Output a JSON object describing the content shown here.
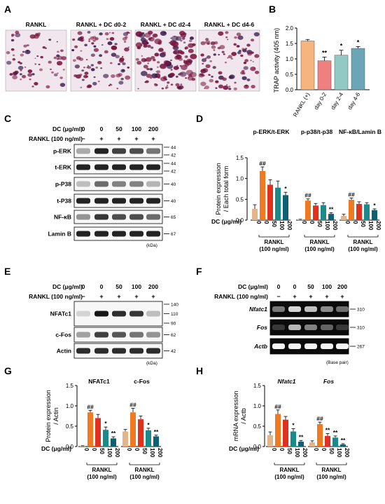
{
  "panels": {
    "A": {
      "letter": "A",
      "images": [
        {
          "label": "RANKL",
          "tone": "light"
        },
        {
          "label": "RANKL + DC d0-2",
          "tone": "medium"
        },
        {
          "label": "RANKL + DC d2-4",
          "tone": "dark"
        },
        {
          "label": "RANKL + DC d4-6",
          "tone": "medium"
        }
      ],
      "colors": {
        "bg": "#f1e6ee",
        "stain": "#7a1840",
        "nucleus": "#3b1d4a"
      }
    },
    "B": {
      "letter": "B",
      "chart_data": {
        "type": "bar",
        "categories": [
          "RANKL (+)",
          "day 0-2",
          "day 2-4",
          "day 4-6"
        ],
        "values": [
          1.58,
          0.94,
          1.12,
          1.34
        ],
        "errors": [
          0.05,
          0.12,
          0.16,
          0.06
        ],
        "sig": [
          "",
          "**",
          "*",
          "*"
        ],
        "colors": [
          "#f6b47e",
          "#f07f80",
          "#93c9c4",
          "#6aa6b5"
        ],
        "ylabel": "TRAP activity (405 nm)",
        "ylim": [
          0,
          2.0
        ],
        "yticks": [
          "0.0",
          "0.5",
          "1.0",
          "1.5",
          "2.0"
        ]
      }
    },
    "C": {
      "letter": "C",
      "dc_label": "DC (μg/ml)",
      "rankl_label": "RANKL (100 ng/ml)",
      "dc_values": [
        "0",
        "0",
        "50",
        "100",
        "200"
      ],
      "rankl_values": [
        "−",
        "+",
        "+",
        "+",
        "+"
      ],
      "rows": [
        {
          "name": "p-ERK",
          "markers": [
            "44",
            "42"
          ],
          "intensity": [
            0.25,
            0.9,
            0.75,
            0.7,
            0.5
          ]
        },
        {
          "name": "t-ERK",
          "markers": [
            "44",
            "42"
          ],
          "intensity": [
            0.9,
            0.9,
            0.9,
            0.9,
            0.9
          ]
        },
        {
          "name": "p-P38",
          "markers": [
            "40"
          ],
          "intensity": [
            0.15,
            0.55,
            0.45,
            0.45,
            0.2
          ]
        },
        {
          "name": "t-P38",
          "markers": [
            "40"
          ],
          "intensity": [
            0.9,
            0.9,
            0.9,
            0.9,
            0.9
          ]
        },
        {
          "name": "NF-κB",
          "markers": [
            "65"
          ],
          "intensity": [
            0.35,
            0.8,
            0.7,
            0.7,
            0.55
          ]
        },
        {
          "name": "Lamin B",
          "markers": [
            "67"
          ],
          "intensity": [
            0.9,
            0.9,
            0.9,
            0.9,
            0.9
          ]
        }
      ],
      "unit": "(kDa)"
    },
    "D": {
      "letter": "D",
      "chart_data": {
        "type": "bar",
        "ylabel_line1": "Protein expression",
        "ylabel_line2": "/ Each total form",
        "ylim": [
          0,
          1.5
        ],
        "yticks": [
          "0.0",
          "0.5",
          "1.0",
          "1.5"
        ],
        "groups": [
          {
            "title": "p-ERK/t-ERK",
            "values": [
              0.27,
              1.18,
              0.85,
              0.78,
              0.6
            ],
            "errors": [
              0.1,
              0.1,
              0.12,
              0.16,
              0.07
            ],
            "sig": [
              "",
              "##",
              "",
              "",
              "*"
            ]
          },
          {
            "title": "p-p38/t-p38",
            "values": [
              0.01,
              0.47,
              0.35,
              0.36,
              0.15
            ],
            "errors": [
              0.01,
              0.04,
              0.05,
              0.06,
              0.03
            ],
            "sig": [
              "",
              "##",
              "",
              "",
              "**"
            ]
          },
          {
            "title": "NF-κB/Lamin B",
            "values": [
              0.1,
              0.49,
              0.39,
              0.38,
              0.24
            ],
            "errors": [
              0.04,
              0.04,
              0.05,
              0.04,
              0.03
            ],
            "sig": [
              "",
              "##",
              "",
              "",
              "*"
            ]
          }
        ],
        "dc_label": "DC (μg/ml)",
        "dc_ticks": [
          "0",
          "0",
          "50",
          "100",
          "200"
        ],
        "rankl_line1": "RANKL",
        "rankl_line2": "(100 ng/ml)",
        "colors": [
          "#e2b68a",
          "#ef7a21",
          "#e0301e",
          "#1b8a8a",
          "#0d5f73"
        ]
      }
    },
    "E": {
      "letter": "E",
      "dc_label": "DC (μg/ml)",
      "rankl_label": "RANKL (100 ng/ml)",
      "dc_values": [
        "0",
        "0",
        "50",
        "100",
        "200"
      ],
      "rankl_values": [
        "−",
        "+",
        "+",
        "+",
        "+"
      ],
      "rows": [
        {
          "name": "NFATc1",
          "markers": [
            "140",
            "110",
            "90"
          ],
          "intensity": [
            0.05,
            0.95,
            0.85,
            0.8,
            0.15
          ]
        },
        {
          "name": "c-Fos",
          "markers": [
            "62"
          ],
          "intensity": [
            0.3,
            0.75,
            0.65,
            0.5,
            0.35
          ]
        },
        {
          "name": "Actin",
          "markers": [
            "42"
          ],
          "intensity": [
            0.85,
            0.85,
            0.85,
            0.85,
            0.85
          ]
        }
      ],
      "unit": "(kDa)"
    },
    "F": {
      "letter": "F",
      "dc_label": "DC (μg/ml)",
      "rankl_label": "RANKL (100 ng/ml)",
      "dc_values": [
        "0",
        "0",
        "50",
        "100",
        "200"
      ],
      "rankl_values": [
        "−",
        "+",
        "+",
        "+",
        "+"
      ],
      "rows": [
        {
          "name": "Nfatc1",
          "markers": [
            "310"
          ],
          "intensity": [
            0.35,
            0.8,
            0.7,
            0.45,
            0.3
          ]
        },
        {
          "name": "Fos",
          "markers": [
            "310"
          ],
          "intensity": [
            0.05,
            0.65,
            0.4,
            0.25,
            0.05
          ]
        },
        {
          "name": "Actb",
          "markers": [
            "267"
          ],
          "intensity": [
            0.95,
            0.95,
            0.95,
            0.95,
            0.95
          ]
        }
      ],
      "unit": "(Base pair)"
    },
    "G": {
      "letter": "G",
      "chart_data": {
        "type": "bar",
        "ylabel_line1": "Protein expression",
        "ylabel_line2": "/ Actin",
        "ylim": [
          0,
          1.5
        ],
        "yticks": [
          "0.0",
          "0.5",
          "1.0",
          "1.5"
        ],
        "groups": [
          {
            "title": "NFATc1",
            "values": [
              0.01,
              0.84,
              0.7,
              0.41,
              0.2
            ],
            "errors": [
              0.01,
              0.05,
              0.09,
              0.07,
              0.04
            ],
            "sig": [
              "",
              "##",
              "",
              "*",
              "**"
            ]
          },
          {
            "title": "c-Fos",
            "values": [
              0.37,
              0.84,
              0.67,
              0.4,
              0.25
            ],
            "errors": [
              0.05,
              0.1,
              0.08,
              0.05,
              0.03
            ],
            "sig": [
              "",
              "##",
              "",
              "*",
              "**"
            ]
          }
        ],
        "dc_label": "DC (μg/ml)",
        "dc_ticks": [
          "0",
          "0",
          "50",
          "100",
          "200"
        ],
        "rankl_line1": "RANKL",
        "rankl_line2": "(100 ng/ml)",
        "colors": [
          "#e2b68a",
          "#ef7a21",
          "#e0301e",
          "#1b8a8a",
          "#0d5f73"
        ]
      }
    },
    "H": {
      "letter": "H",
      "chart_data": {
        "type": "bar",
        "ylabel_line1": "mRNA expression",
        "ylabel_line2": "/ Actb",
        "ylim": [
          0,
          1.5
        ],
        "yticks": [
          "0.0",
          "0.5",
          "1.0",
          "1.5"
        ],
        "groups": [
          {
            "title": "Nfatc1",
            "values": [
              0.28,
              0.8,
              0.66,
              0.37,
              0.12
            ],
            "errors": [
              0.08,
              0.1,
              0.08,
              0.07,
              0.03
            ],
            "sig": [
              "",
              "##",
              "",
              "*",
              "**"
            ]
          },
          {
            "title": "Fos",
            "values": [
              0.1,
              0.55,
              0.26,
              0.22,
              0.05
            ],
            "errors": [
              0.04,
              0.05,
              0.06,
              0.04,
              0.02
            ],
            "sig": [
              "",
              "##",
              "**",
              "**",
              "**"
            ]
          }
        ],
        "dc_label": "DC (μg/ml)",
        "dc_ticks": [
          "0",
          "0",
          "50",
          "100",
          "200"
        ],
        "rankl_line1": "RANKL",
        "rankl_line2": "(100 ng/ml)",
        "colors": [
          "#e2b68a",
          "#ef7a21",
          "#e0301e",
          "#1b8a8a",
          "#0d5f73"
        ]
      }
    }
  }
}
